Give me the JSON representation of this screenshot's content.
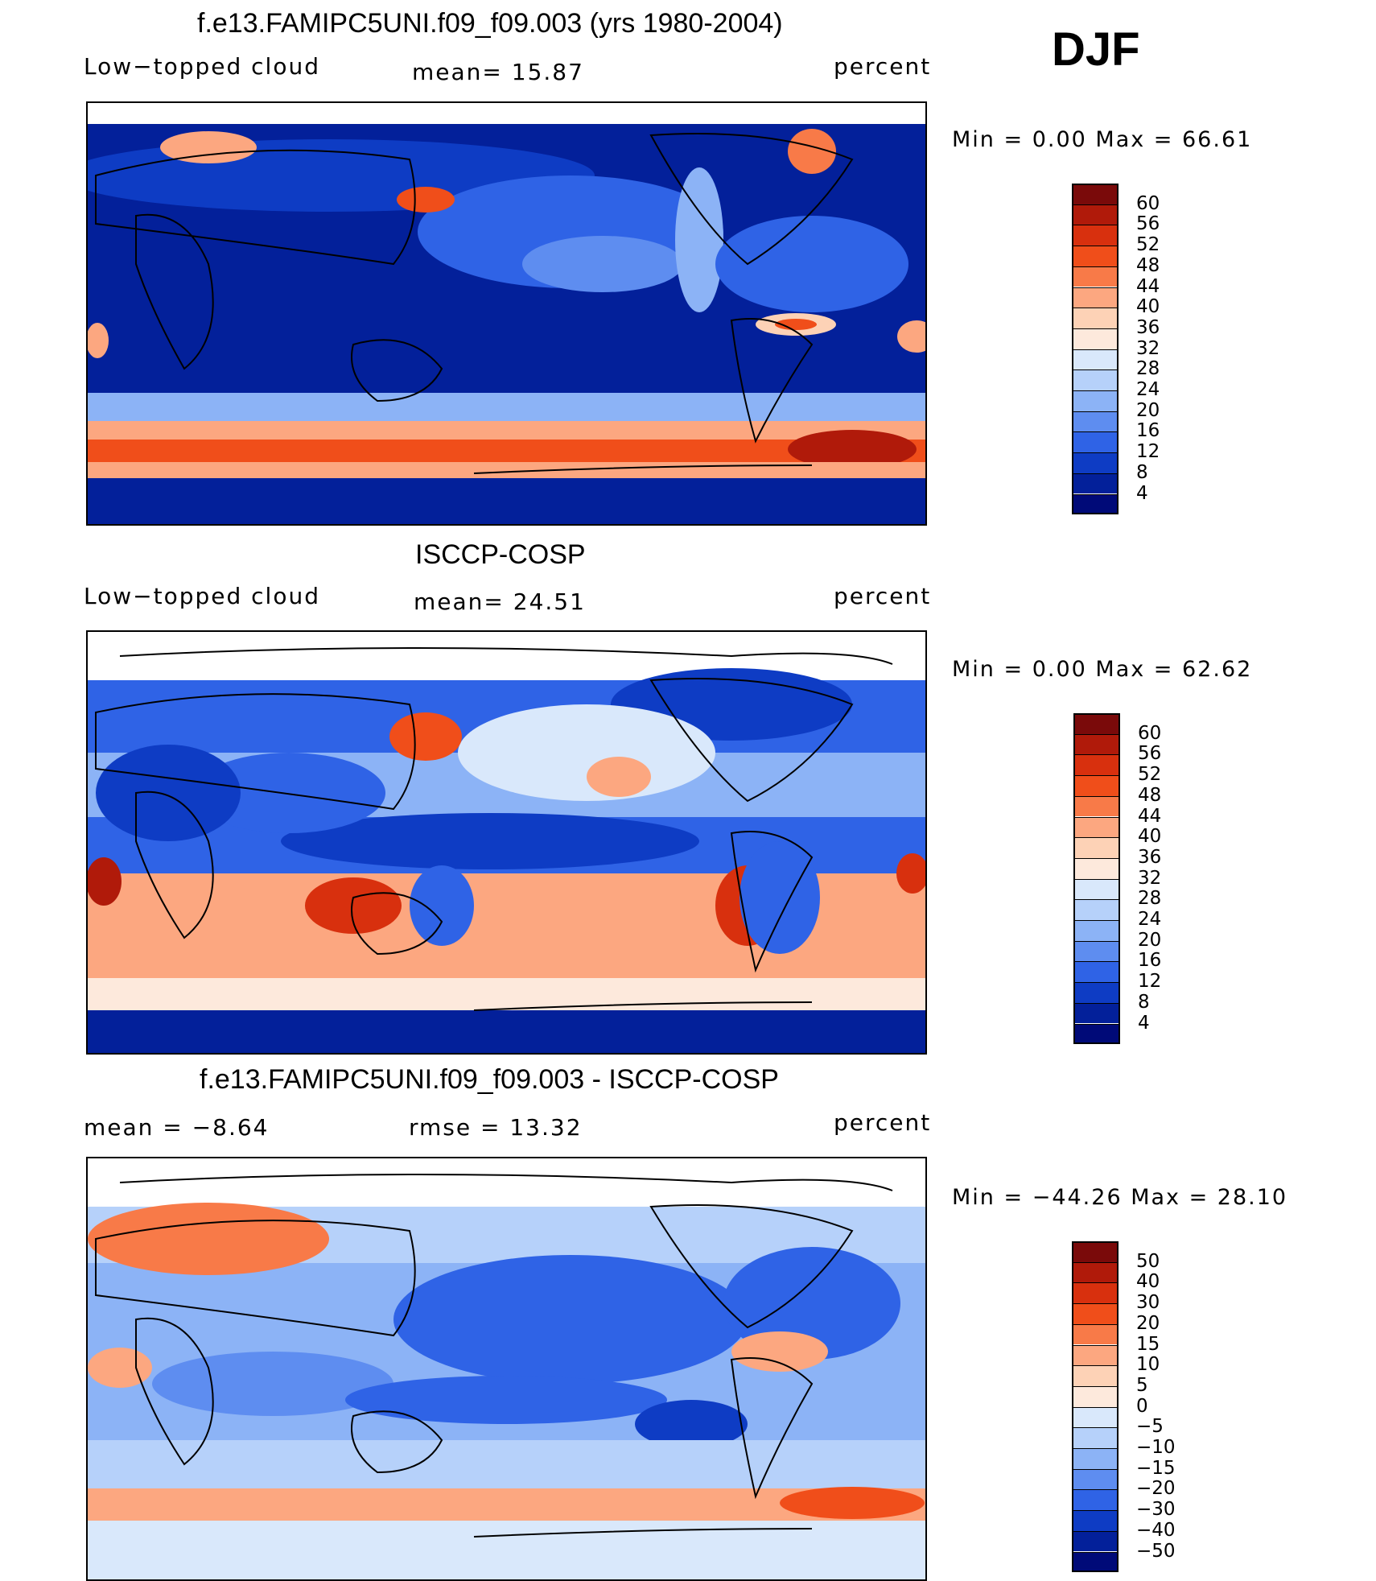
{
  "season": "DJF",
  "panels": [
    {
      "title": "f.e13.FAMIPC5UNI.f09_f09.003 (yrs 1980-2004)",
      "variable": "Low−topped cloud",
      "center_stat": "mean=   15.87",
      "unit": "percent",
      "range_text": "Min  =     0.00  Max  =    66.61",
      "colorbar_labels": [
        "60",
        "56",
        "52",
        "48",
        "44",
        "40",
        "36",
        "32",
        "28",
        "24",
        "20",
        "16",
        "12",
        "8",
        "4"
      ]
    },
    {
      "title": "ISCCP-COSP",
      "variable": "Low−topped cloud",
      "center_stat": "mean=   24.51",
      "unit": "percent",
      "range_text": "Min  =     0.00  Max  =    62.62",
      "colorbar_labels": [
        "60",
        "56",
        "52",
        "48",
        "44",
        "40",
        "36",
        "32",
        "28",
        "24",
        "20",
        "16",
        "12",
        "8",
        "4"
      ]
    },
    {
      "title": "f.e13.FAMIPC5UNI.f09_f09.003 - ISCCP-COSP",
      "variable": "mean  =   −8.64",
      "center_stat": "rmse  =    13.32",
      "unit": "percent",
      "range_text": "Min  = −44.26  Max  =    28.10",
      "colorbar_labels": [
        "50",
        "40",
        "30",
        "20",
        "15",
        "10",
        "5",
        "0",
        "−5",
        "−10",
        "−15",
        "−20",
        "−30",
        "−40",
        "−50"
      ]
    }
  ],
  "colors": {
    "scale": [
      "#7a0a0a",
      "#b01a0a",
      "#d8300e",
      "#f04e1a",
      "#f87a48",
      "#fca780",
      "#fdd2b6",
      "#fde9dc",
      "#d9e8fb",
      "#b6d1fa",
      "#8cb3f6",
      "#5e8df0",
      "#2f63e6",
      "#0e3cc4",
      "#03209a",
      "#000a78"
    ],
    "land_line": "#000000"
  }
}
